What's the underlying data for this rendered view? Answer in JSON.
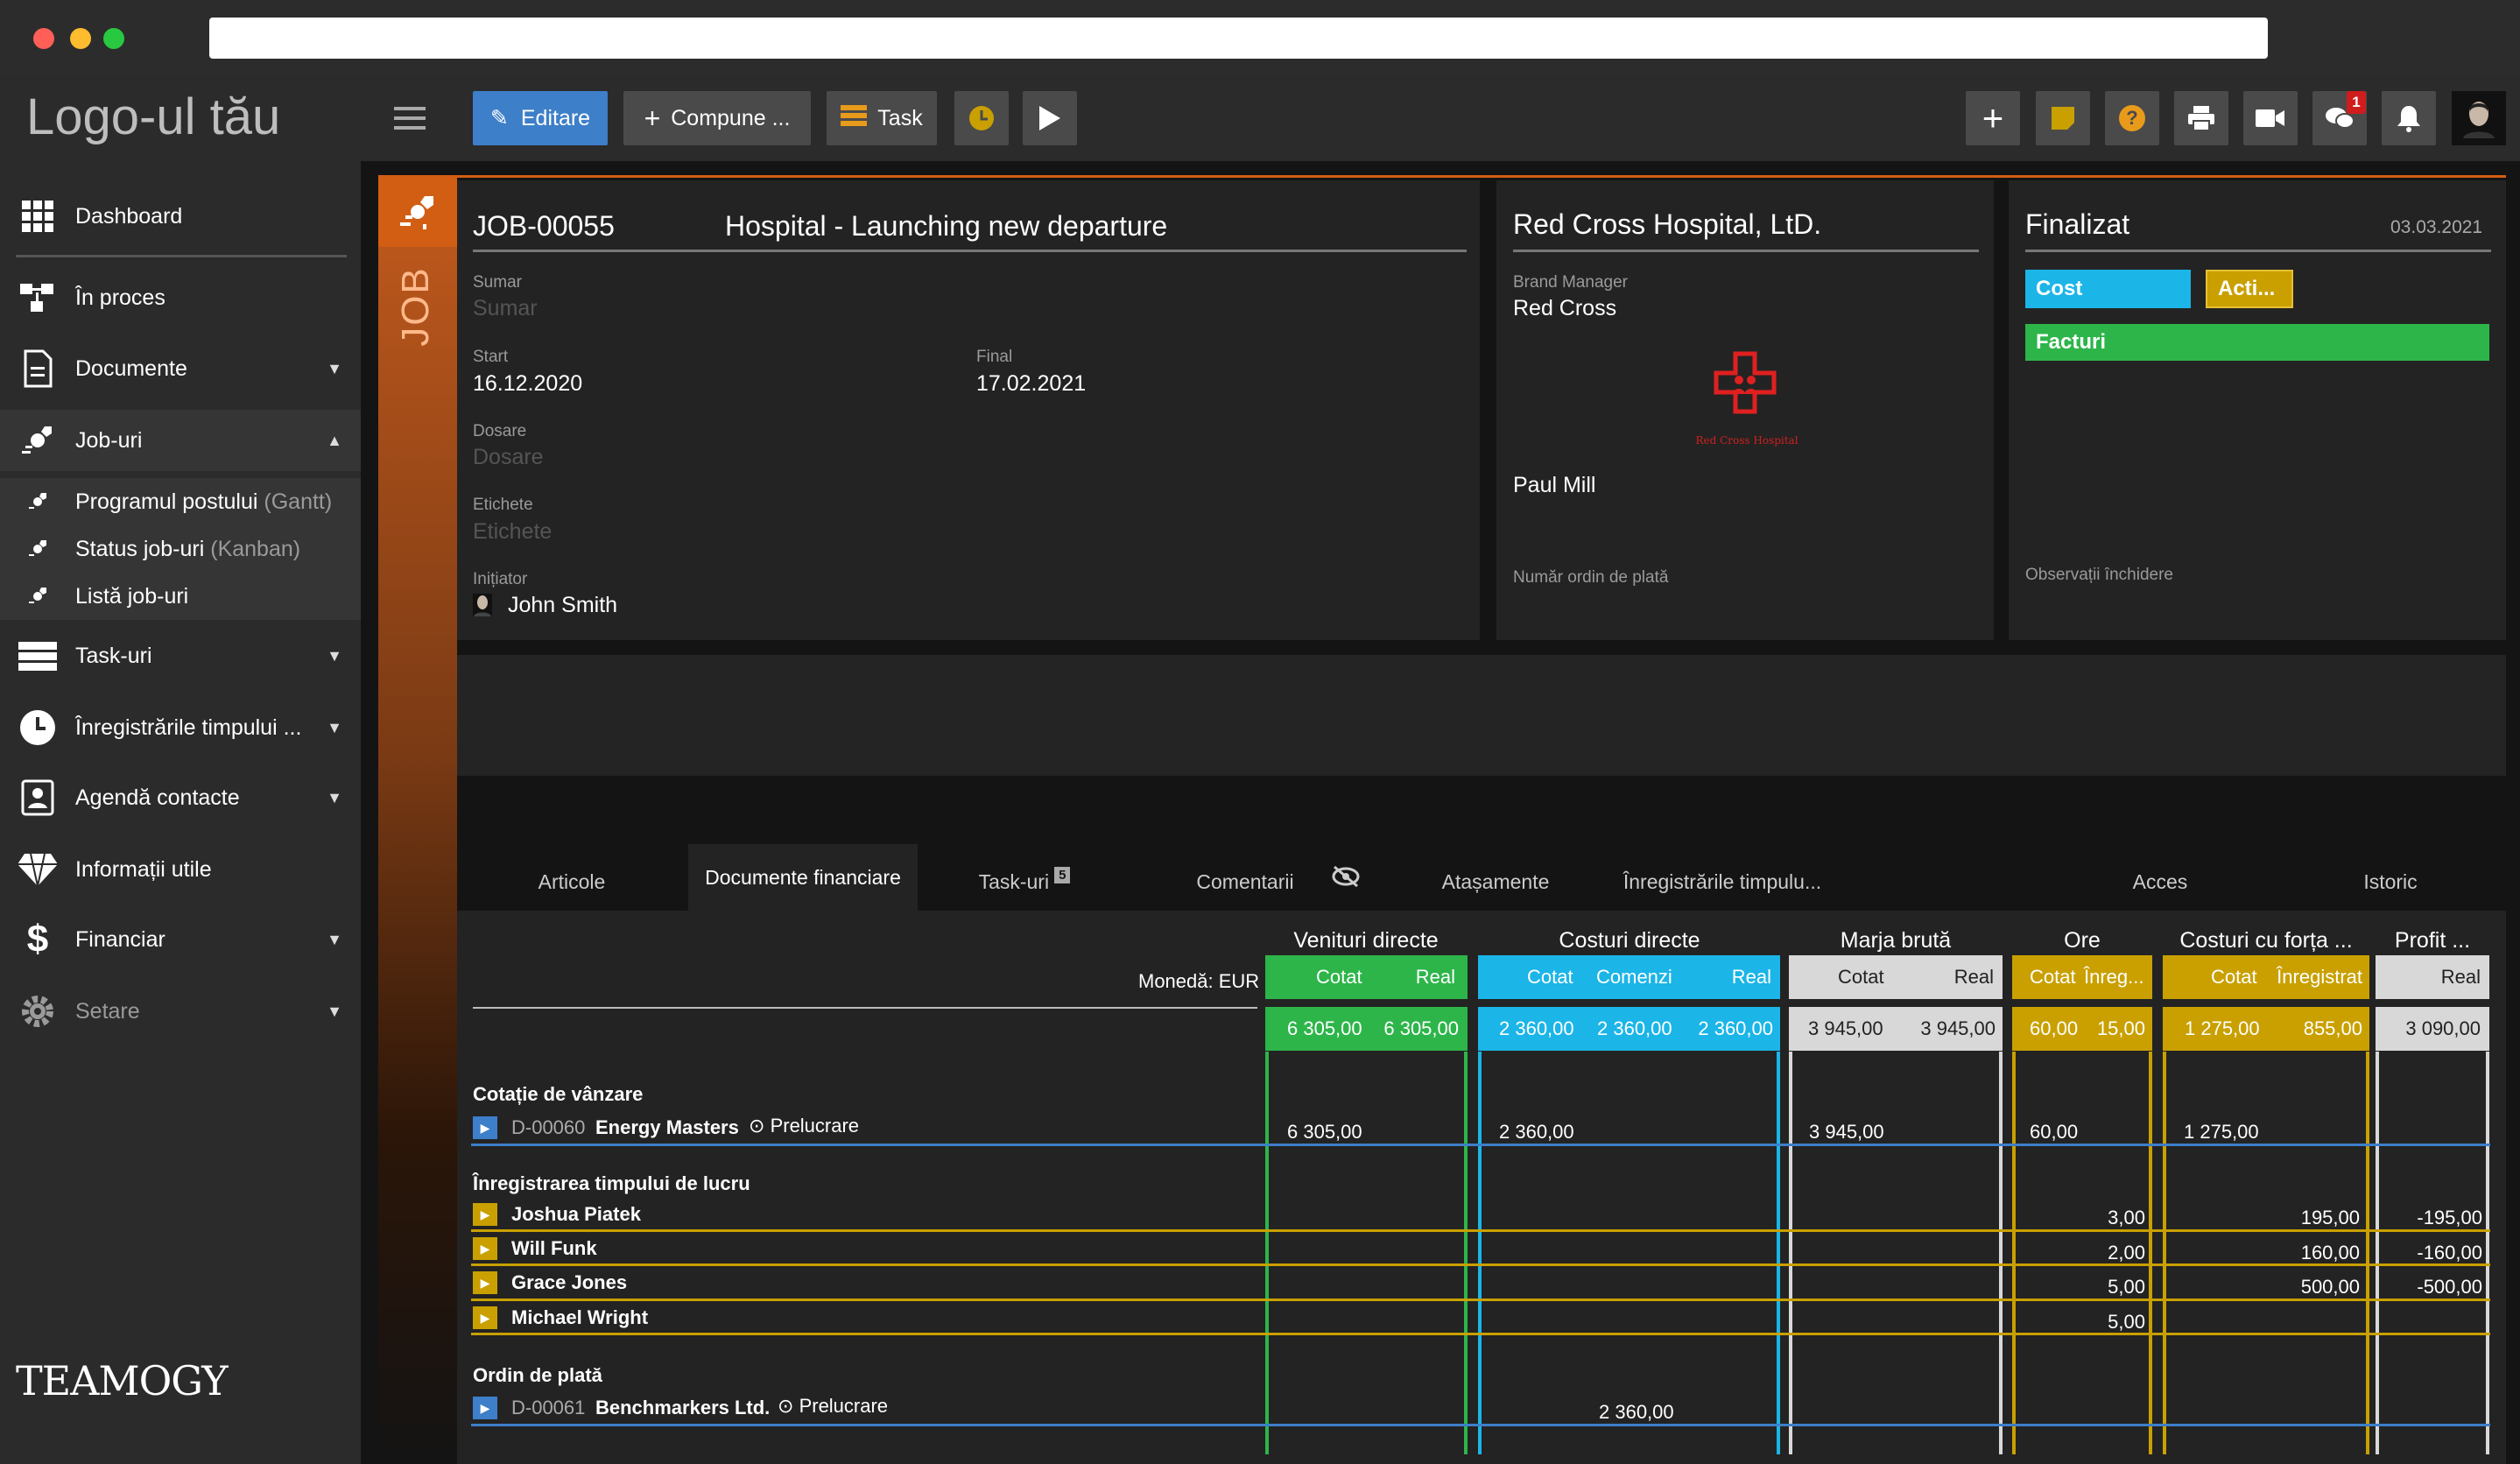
{
  "sidebar": {
    "logo": "Logo-ul tău",
    "items": [
      {
        "label": "Dashboard",
        "icon": "grid-icon"
      },
      {
        "label": "În proces",
        "icon": "flow-icon"
      },
      {
        "label": "Documente",
        "icon": "document-icon"
      },
      {
        "label": "Job-uri",
        "icon": "rocket-icon"
      },
      {
        "label": "Task-uri",
        "icon": "task-icon"
      },
      {
        "label": "Înregistrările timpului ...",
        "icon": "clock-icon"
      },
      {
        "label": "Agendă contacte",
        "icon": "contact-icon"
      },
      {
        "label": "Informații utile",
        "icon": "diamond-icon"
      },
      {
        "label": "Financiar",
        "icon": "dollar-icon"
      },
      {
        "label": "Setare",
        "icon": "gear-icon"
      }
    ],
    "subitems": [
      {
        "label": "Programul postului",
        "extra": "(Gantt)"
      },
      {
        "label": "Status job-uri",
        "extra": "(Kanban)"
      },
      {
        "label": "Listă job-uri",
        "extra": ""
      }
    ],
    "brand": "TEAMOGY"
  },
  "toolbar": {
    "edit": "Editare",
    "compose": "Compune ...",
    "task": "Task",
    "notif_count": "1"
  },
  "job": {
    "side_label": "JOB",
    "code": "JOB-00055",
    "title": "Hospital - Launching new departure",
    "summary_label": "Sumar",
    "summary_ph": "Sumar",
    "start_label": "Start",
    "start": "16.12.2020",
    "end_label": "Final",
    "end": "17.02.2021",
    "files_label": "Dosare",
    "files_ph": "Dosare",
    "tags_label": "Etichete",
    "tags_ph": "Etichete",
    "initiator_label": "Inițiator",
    "initiator": "John Smith"
  },
  "client": {
    "name": "Red Cross Hospital, LtD.",
    "role_label": "Brand Manager",
    "role_value": "Red Cross",
    "logo_caption": "Red Cross Hospital",
    "contact": "Paul Mill",
    "order_label": "Număr ordin de plată"
  },
  "status": {
    "title": "Finalizat",
    "date": "03.03.2021",
    "cost": "Cost",
    "acti": "Acti...",
    "invoices": "Facturi",
    "close_notes": "Observații închidere"
  },
  "tabs": [
    "Articole",
    "Documente financiare",
    "Task-uri",
    "Comentarii",
    "Atașamente",
    "Înregistrările timpulu...",
    "Acces",
    "Istoric"
  ],
  "tab_badge": "5",
  "table": {
    "currency": "Monedă: EUR",
    "groups": [
      {
        "title": "Venituri directe",
        "color": "#2db54a",
        "subs": [
          "Cotat",
          "Real"
        ],
        "totals": [
          "6 305,00",
          "6 305,00"
        ]
      },
      {
        "title": "Costuri directe",
        "color": "#1bb5e8",
        "subs": [
          "Cotat",
          "Comenzi",
          "Real"
        ],
        "totals": [
          "2 360,00",
          "2 360,00",
          "2 360,00"
        ]
      },
      {
        "title": "Marja brută",
        "color": "#d8d8d8",
        "subs": [
          "Cotat",
          "Real"
        ],
        "totals": [
          "3 945,00",
          "3 945,00"
        ]
      },
      {
        "title": "Ore",
        "color": "#c9a000",
        "subs": [
          "Cotat",
          "Înreg..."
        ],
        "totals": [
          "60,00",
          "15,00"
        ]
      },
      {
        "title": "Costuri cu forța ...",
        "color": "#c9a000",
        "subs": [
          "Cotat",
          "Înregistrat"
        ],
        "totals": [
          "1 275,00",
          "855,00"
        ]
      },
      {
        "title": "Profit ...",
        "color": "#d8d8d8",
        "subs": [
          "Real"
        ],
        "totals": [
          "3 090,00"
        ]
      }
    ],
    "sections": [
      {
        "title": "Cotație de vânzare",
        "code": "D-00060",
        "name": "Energy Masters",
        "action": "Prelucrare",
        "vals": [
          "6 305,00",
          "2 360,00",
          "3 945,00",
          "60,00",
          "1 275,00"
        ]
      },
      {
        "title": "Înregistrarea timpului de lucru",
        "people": [
          {
            "name": "Joshua Piatek",
            "hours": "3,00",
            "cost": "195,00",
            "profit": "-195,00"
          },
          {
            "name": "Will Funk",
            "hours": "2,00",
            "cost": "160,00",
            "profit": "-160,00"
          },
          {
            "name": "Grace Jones",
            "hours": "5,00",
            "cost": "500,00",
            "profit": "-500,00"
          },
          {
            "name": "Michael Wright",
            "hours": "5,00",
            "cost": "",
            "profit": ""
          }
        ]
      },
      {
        "title": "Ordin de plată",
        "code": "D-00061",
        "name": "Benchmarkers Ltd.",
        "action": "Prelucrare",
        "vals": [
          "2 360,00"
        ]
      }
    ]
  }
}
